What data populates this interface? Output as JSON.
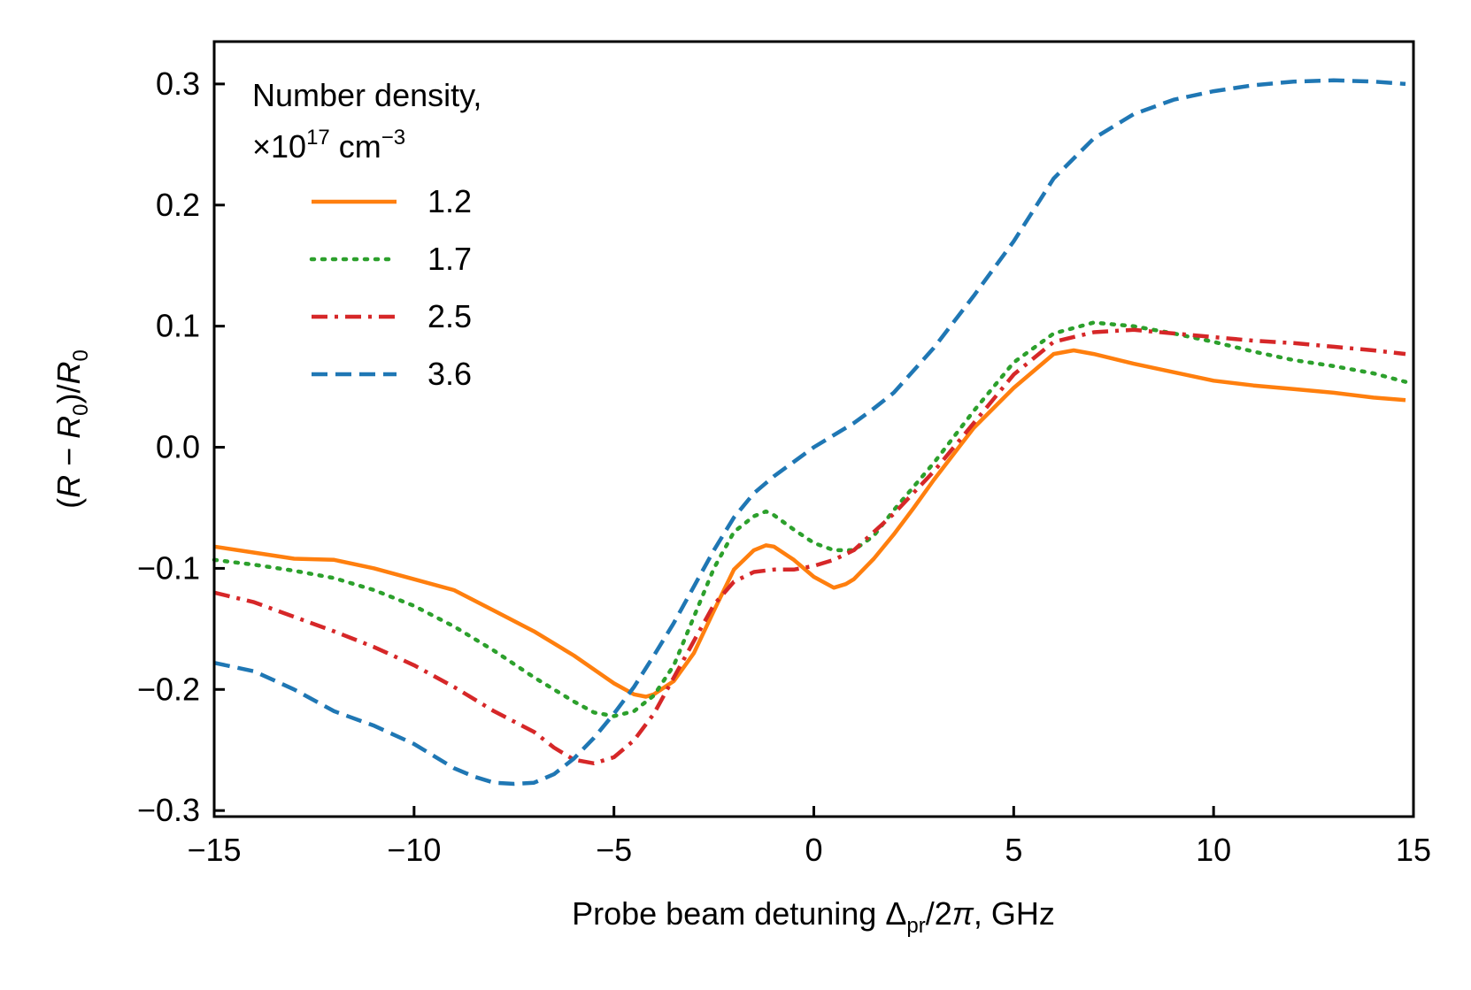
{
  "chart_data": {
    "type": "line",
    "title": "",
    "xlabel": "Probe beam detuning Δpr/2π, GHz",
    "xlabel_parts": {
      "prefix": "Probe beam detuning Δ",
      "sub": "pr",
      "suffix": "/2",
      "pi": "π",
      "tail": ", GHz"
    },
    "ylabel": "(R − R0)/R0",
    "ylabel_parts": {
      "open": "(",
      "r1": "R",
      "minus": " − ",
      "r2": "R",
      "sub1": "0",
      "close": ")/",
      "r3": "R",
      "sub2": "0"
    },
    "xlim": [
      -15,
      15
    ],
    "ylim": [
      -0.305,
      0.335
    ],
    "xticks": [
      -15,
      -10,
      -5,
      0,
      5,
      10,
      15
    ],
    "xtick_labels": [
      "−15",
      "−10",
      "−5",
      "0",
      "5",
      "10",
      "15"
    ],
    "yticks": [
      -0.3,
      -0.2,
      -0.1,
      0.0,
      0.1,
      0.2,
      0.3
    ],
    "ytick_labels": [
      "−0.3",
      "−0.2",
      "−0.1",
      "0.0",
      "0.1",
      "0.2",
      "0.3"
    ],
    "grid": false,
    "legend": {
      "placement": "top-left",
      "title_line1": "Number density,",
      "title_line2_prefix": "×10",
      "title_line2_exp": "17",
      "title_line2_unit": " cm",
      "title_line2_unit_exp": "−3"
    },
    "series": [
      {
        "name": "1.2",
        "color": "#ff7f0e",
        "style": "solid",
        "x": [
          -15,
          -14,
          -13,
          -12,
          -11,
          -10,
          -9,
          -8,
          -7,
          -6,
          -5,
          -4.5,
          -4.2,
          -4,
          -3.5,
          -3,
          -2.5,
          -2,
          -1.5,
          -1.2,
          -1,
          -0.5,
          0,
          0.5,
          0.8,
          1,
          1.5,
          2,
          2.5,
          3,
          4,
          5,
          6,
          6.5,
          7,
          8,
          9,
          10,
          11,
          12,
          13,
          14,
          14.8
        ],
        "y": [
          -0.082,
          -0.087,
          -0.092,
          -0.093,
          -0.1,
          -0.109,
          -0.118,
          -0.135,
          -0.152,
          -0.172,
          -0.195,
          -0.204,
          -0.206,
          -0.204,
          -0.193,
          -0.17,
          -0.135,
          -0.101,
          -0.085,
          -0.081,
          -0.082,
          -0.093,
          -0.107,
          -0.116,
          -0.113,
          -0.109,
          -0.092,
          -0.072,
          -0.05,
          -0.027,
          0.016,
          0.049,
          0.077,
          0.08,
          0.077,
          0.069,
          0.062,
          0.055,
          0.051,
          0.048,
          0.045,
          0.041,
          0.039
        ]
      },
      {
        "name": "1.7",
        "color": "#2ca02c",
        "style": "dotted",
        "x": [
          -15,
          -14,
          -13,
          -12,
          -11,
          -10,
          -9,
          -8,
          -7,
          -6,
          -5.5,
          -5,
          -4.5,
          -4,
          -3.5,
          -3,
          -2.5,
          -2,
          -1.5,
          -1.2,
          -1,
          -0.5,
          0,
          0.5,
          1,
          1.5,
          2,
          3,
          4,
          5,
          6,
          7,
          8,
          9,
          10,
          11,
          12,
          13,
          14,
          14.8
        ],
        "y": [
          -0.093,
          -0.097,
          -0.102,
          -0.108,
          -0.118,
          -0.131,
          -0.148,
          -0.168,
          -0.19,
          -0.21,
          -0.219,
          -0.222,
          -0.218,
          -0.205,
          -0.18,
          -0.14,
          -0.1,
          -0.07,
          -0.057,
          -0.053,
          -0.056,
          -0.068,
          -0.079,
          -0.085,
          -0.085,
          -0.073,
          -0.052,
          -0.013,
          0.03,
          0.07,
          0.094,
          0.103,
          0.1,
          0.094,
          0.087,
          0.079,
          0.072,
          0.067,
          0.061,
          0.054
        ]
      },
      {
        "name": "2.5",
        "color": "#d62728",
        "style": "dashdot",
        "x": [
          -15,
          -14,
          -13,
          -12,
          -11,
          -10,
          -9,
          -8,
          -7,
          -6.5,
          -6,
          -5.5,
          -5,
          -4.5,
          -4,
          -3.5,
          -3,
          -2.5,
          -2,
          -1.5,
          -1,
          -0.5,
          0,
          0.5,
          1,
          1.5,
          2,
          3,
          4,
          5,
          6,
          7,
          8,
          9,
          10,
          11,
          12,
          13,
          14,
          14.8
        ],
        "y": [
          -0.12,
          -0.128,
          -0.14,
          -0.152,
          -0.165,
          -0.18,
          -0.198,
          -0.218,
          -0.235,
          -0.248,
          -0.258,
          -0.261,
          -0.256,
          -0.242,
          -0.22,
          -0.19,
          -0.16,
          -0.13,
          -0.111,
          -0.103,
          -0.101,
          -0.101,
          -0.098,
          -0.093,
          -0.085,
          -0.07,
          -0.055,
          -0.02,
          0.02,
          0.06,
          0.087,
          0.095,
          0.097,
          0.094,
          0.091,
          0.088,
          0.086,
          0.083,
          0.08,
          0.077
        ]
      },
      {
        "name": "3.6",
        "color": "#1f77b4",
        "style": "dashed",
        "x": [
          -15,
          -14,
          -13,
          -12,
          -11,
          -10,
          -9,
          -8.5,
          -8,
          -7.5,
          -7,
          -6.5,
          -6,
          -5.5,
          -5,
          -4.5,
          -4,
          -3.5,
          -3,
          -2.5,
          -2,
          -1.5,
          -1,
          -0.5,
          0,
          0.5,
          1,
          1.5,
          2,
          3,
          4,
          5,
          6,
          7,
          8,
          9,
          10,
          11,
          12,
          13,
          14,
          14.8
        ],
        "y": [
          -0.178,
          -0.185,
          -0.2,
          -0.218,
          -0.23,
          -0.245,
          -0.265,
          -0.272,
          -0.277,
          -0.278,
          -0.277,
          -0.27,
          -0.257,
          -0.24,
          -0.22,
          -0.198,
          -0.172,
          -0.145,
          -0.115,
          -0.085,
          -0.058,
          -0.038,
          -0.024,
          -0.012,
          0.0,
          0.01,
          0.02,
          0.032,
          0.045,
          0.082,
          0.125,
          0.17,
          0.222,
          0.255,
          0.275,
          0.287,
          0.294,
          0.299,
          0.302,
          0.303,
          0.302,
          0.3
        ]
      }
    ]
  }
}
